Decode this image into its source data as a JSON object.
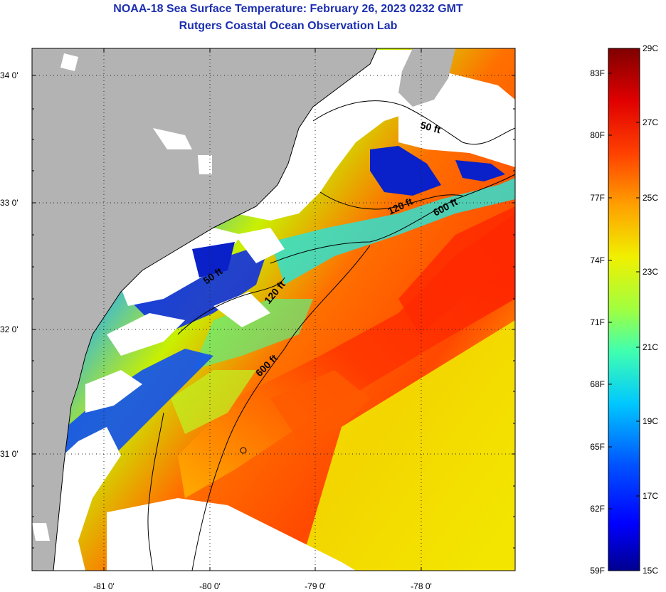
{
  "header": {
    "title": "NOAA-18 Sea Surface Temperature:  February 26, 2023 0232 GMT",
    "subtitle": "Rutgers Coastal Ocean Observation Lab"
  },
  "map": {
    "lat_labels": [
      "34 0'",
      "33 0'",
      "32 0'",
      "31 0'"
    ],
    "lon_labels": [
      "-81 0'",
      "-80 0'",
      "-79 0'",
      "-78 0'"
    ],
    "contour_labels": [
      "50 ft",
      "120 ft",
      "600 ft",
      "50 ft",
      "120 ft",
      "600 ft"
    ]
  },
  "colorbar": {
    "fahrenheit": [
      "83F",
      "80F",
      "77F",
      "74F",
      "71F",
      "68F",
      "65F",
      "62F",
      "59F"
    ],
    "celsius": [
      "29C",
      "27C",
      "25C",
      "23C",
      "21C",
      "19C",
      "17C",
      "15C"
    ]
  },
  "colors": {
    "land": "#b3b3b3",
    "cloud": "#ffffff",
    "title": "#1c2fb0"
  }
}
